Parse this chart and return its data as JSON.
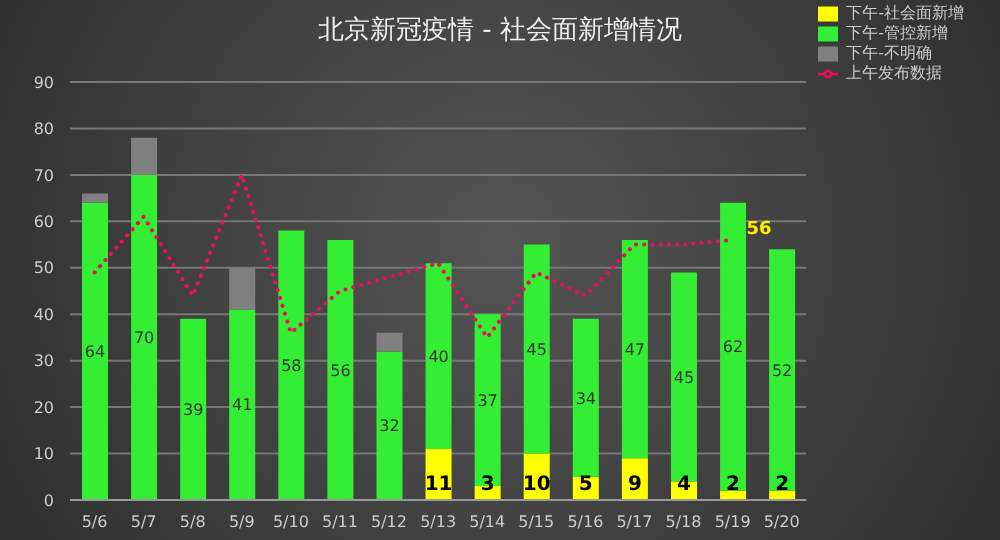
{
  "chart_data": {
    "type": "bar",
    "title": "北京新冠疫情 - 社会面新增情况",
    "stacked": true,
    "categories": [
      "5/6",
      "5/7",
      "5/8",
      "5/9",
      "5/10",
      "5/11",
      "5/12",
      "5/13",
      "5/14",
      "5/15",
      "5/16",
      "5/17",
      "5/18",
      "5/19",
      "5/20"
    ],
    "series": [
      {
        "name": "下午-社会面新增",
        "color": "#ffff00",
        "values": [
          0,
          0,
          0,
          0,
          0,
          0,
          0,
          11,
          3,
          10,
          5,
          9,
          4,
          2,
          2
        ],
        "value_labels": [
          null,
          null,
          null,
          null,
          null,
          null,
          null,
          "11",
          "3",
          "10",
          "5",
          "9",
          "4",
          "2",
          "2"
        ]
      },
      {
        "name": "下午-管控新增",
        "color": "#33ee33",
        "values": [
          64,
          70,
          39,
          41,
          58,
          56,
          32,
          40,
          37,
          45,
          34,
          47,
          45,
          62,
          52
        ],
        "value_labels": [
          "64",
          "70",
          "39",
          "41",
          "58",
          "56",
          "32",
          "40",
          "37",
          "45",
          "34",
          "47",
          "45",
          "62",
          "52"
        ]
      },
      {
        "name": "下午-不明确",
        "color": "#808080",
        "values": [
          2,
          8,
          0,
          9,
          0,
          0,
          4,
          0,
          0,
          0,
          0,
          0,
          0,
          0,
          0
        ]
      },
      {
        "name": "上午发布数据",
        "type": "line",
        "color": "#e8105a",
        "line_style": "dotted",
        "marker": "none",
        "values": [
          49,
          61,
          44,
          70,
          36,
          45,
          48,
          51,
          35,
          49,
          44,
          55,
          55,
          56,
          null
        ]
      }
    ],
    "annotations": [
      {
        "text": "56",
        "x": "5/19",
        "y": 56
      }
    ],
    "ylim": [
      0,
      90
    ],
    "yticks": [
      0,
      10,
      20,
      30,
      40,
      50,
      60,
      70,
      80,
      90
    ],
    "grid": "y",
    "legend": "top right"
  }
}
